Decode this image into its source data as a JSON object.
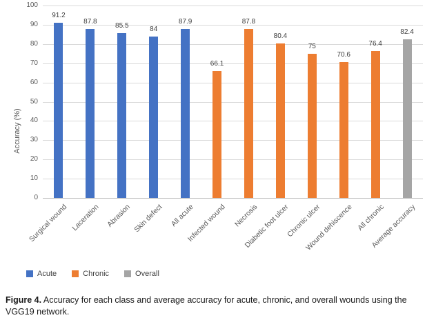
{
  "chart_data": {
    "type": "bar",
    "title": "",
    "xlabel": "",
    "ylabel": "Accuracy (%)",
    "ylim": [
      0,
      100
    ],
    "ytick_step": 10,
    "grid": true,
    "legend_position": "bottom-left",
    "categories": [
      "Surgical wound",
      "Laceration",
      "Abrasion",
      "Skin defect",
      "All acute",
      "Infected wound",
      "Necrosis",
      "Diabetic foot ulcer",
      "Chronic ulcer",
      "Wound dehiscence",
      "All chronic",
      "Average accuracy"
    ],
    "values": [
      91.2,
      87.8,
      85.5,
      84,
      87.9,
      66.1,
      87.8,
      80.4,
      75,
      70.6,
      76.4,
      82.4
    ],
    "groups": [
      "acute",
      "acute",
      "acute",
      "acute",
      "acute",
      "chronic",
      "chronic",
      "chronic",
      "chronic",
      "chronic",
      "chronic",
      "overall"
    ],
    "group_colors": {
      "acute": "#4472C4",
      "chronic": "#ED7D31",
      "overall": "#A5A5A5"
    },
    "legend": [
      {
        "label": "Acute",
        "color": "#4472C4"
      },
      {
        "label": "Chronic",
        "color": "#ED7D31"
      },
      {
        "label": "Overall",
        "color": "#A5A5A5"
      }
    ]
  },
  "caption": {
    "label": "Figure 4.",
    "text": "Accuracy for each class and average accuracy for acute, chronic, and overall wounds using the VGG19 network."
  }
}
